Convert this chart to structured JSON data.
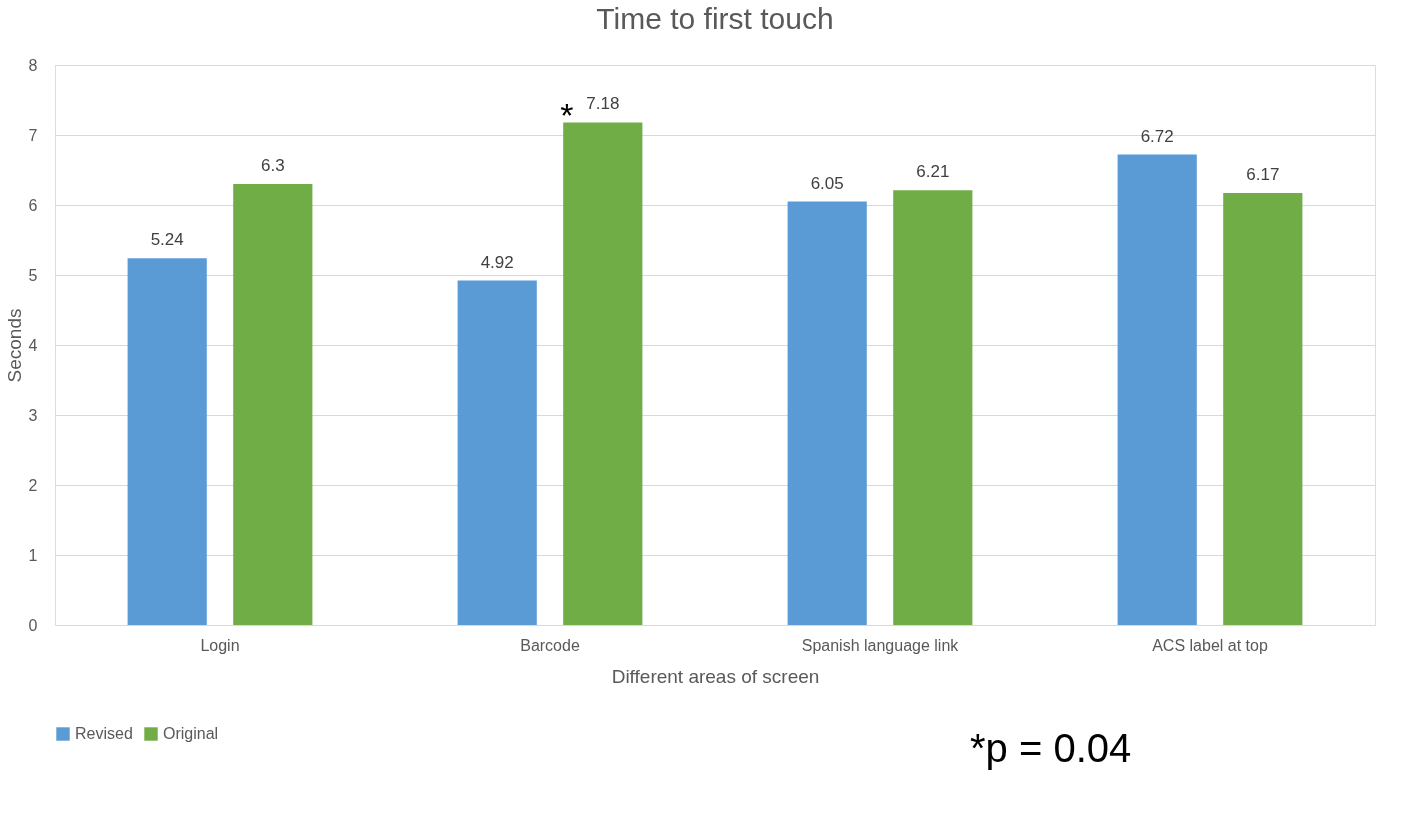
{
  "chart_data": {
    "type": "bar",
    "title": "Time to first touch",
    "xlabel": "Different areas of screen",
    "ylabel": "Seconds",
    "categories": [
      "Login",
      "Barcode",
      "Spanish language link",
      "ACS label at top"
    ],
    "series": [
      {
        "name": "Revised",
        "color": "#5b9bd5",
        "values": [
          5.24,
          4.92,
          6.05,
          6.72
        ]
      },
      {
        "name": "Original",
        "color": "#70ad47",
        "values": [
          6.3,
          7.18,
          6.21,
          6.17
        ]
      }
    ],
    "ylim": [
      0,
      8
    ],
    "yticks": [
      0,
      1,
      2,
      3,
      4,
      5,
      6,
      7,
      8
    ],
    "grid": "y",
    "legend": "bottom",
    "data_labels": true,
    "annotations": [
      "*",
      "*p = 0.04"
    ]
  }
}
